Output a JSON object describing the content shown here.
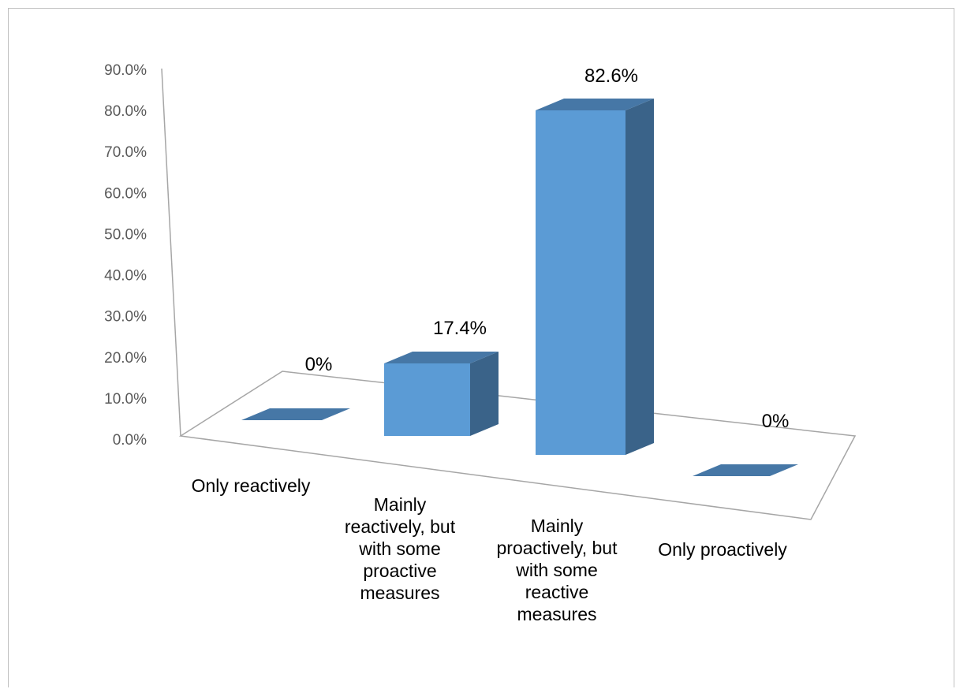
{
  "chart_data": {
    "type": "bar",
    "style": "3d-column",
    "categories": [
      "Only reactively",
      "Mainly reactively, but with some proactive measures",
      "Mainly proactively, but with some reactive measures",
      "Only proactively"
    ],
    "category_lines": [
      [
        "Only reactively"
      ],
      [
        "Mainly",
        "reactively, but",
        "with some",
        "proactive",
        "measures"
      ],
      [
        "Mainly",
        "proactively, but",
        "with some",
        "reactive",
        "measures"
      ],
      [
        "Only proactively"
      ]
    ],
    "values": [
      0,
      17.4,
      82.6,
      0
    ],
    "data_labels": [
      "0%",
      "17.4%",
      "82.6%",
      "0%"
    ],
    "y_ticks": [
      "0.0%",
      "10.0%",
      "20.0%",
      "30.0%",
      "40.0%",
      "50.0%",
      "60.0%",
      "70.0%",
      "80.0%",
      "90.0%"
    ],
    "ylim": [
      0,
      90
    ],
    "title": "",
    "xlabel": "",
    "ylabel": "",
    "grid": false,
    "legend": "none",
    "colors": {
      "front": "#5b9bd5",
      "side": "#3a6389",
      "top": "#4677a6",
      "axis": "#a6a6a6",
      "frame": "#bfbfbf"
    }
  }
}
